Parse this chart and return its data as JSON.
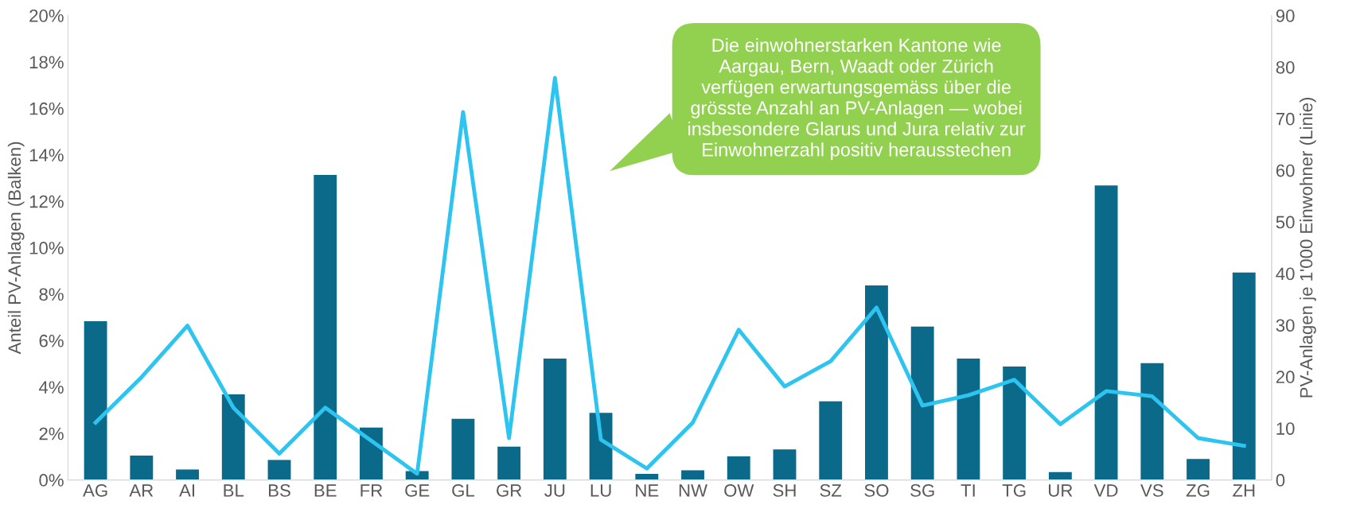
{
  "chart_data": {
    "type": "bar",
    "categories": [
      "AG",
      "AR",
      "AI",
      "BL",
      "BS",
      "BE",
      "FR",
      "GE",
      "GL",
      "GR",
      "JU",
      "LU",
      "NE",
      "NW",
      "OW",
      "SH",
      "SZ",
      "SO",
      "SG",
      "TI",
      "TG",
      "UR",
      "VD",
      "VS",
      "ZG",
      "ZH"
    ],
    "series": [
      {
        "color": "#0b6a8a",
        "values": [
          6.83,
          1.05,
          0.45,
          3.68,
          0.86,
          13.13,
          2.25,
          0.38,
          2.63,
          1.43,
          5.22,
          2.89,
          0.26,
          0.41,
          1.01,
          1.31,
          3.38,
          8.37,
          6.6,
          5.22,
          4.88,
          0.34,
          12.68,
          5.03,
          0.9,
          8.93
        ]
      },
      {
        "type": "line",
        "axis": "y2",
        "color": "#2ec4f0",
        "values": [
          11.1,
          19.9,
          29.9,
          14.0,
          5.1,
          14.0,
          7.6,
          1.2,
          71.3,
          8.1,
          77.9,
          7.8,
          2.2,
          11.1,
          29.1,
          18.1,
          23.0,
          33.4,
          14.4,
          16.4,
          19.4,
          10.8,
          17.2,
          16.2,
          8.1,
          6.6
        ]
      }
    ],
    "ylabel": "Anteil PV-Anlagen (Balken)",
    "y2label": "PV-Anlagen je 1'000 Einwohner (Linie)",
    "ylim": [
      0,
      20
    ],
    "yticks": [
      {
        "value": 0,
        "label": "0%"
      },
      {
        "value": 2,
        "label": "2%"
      },
      {
        "value": 4,
        "label": "4%"
      },
      {
        "value": 6,
        "label": "6%"
      },
      {
        "value": 8,
        "label": "8%"
      },
      {
        "value": 10,
        "label": "10%"
      },
      {
        "value": 12,
        "label": "12%"
      },
      {
        "value": 14,
        "label": "14%"
      },
      {
        "value": 16,
        "label": "16%"
      },
      {
        "value": 18,
        "label": "18%"
      },
      {
        "value": 20,
        "label": "20%"
      }
    ],
    "y2lim": [
      0,
      90
    ],
    "y2ticks": [
      0,
      10,
      20,
      30,
      40,
      50,
      60,
      70,
      80,
      90
    ],
    "annotations": [
      "Die einwohnerstarken Kantone wie\nAargau, Bern, Waadt oder Zürich\nverfügen erwartungsgemäss über die\ngrösste Anzahl an PV-Anlagen — wobei\ninsbesondere Glarus und Jura relativ zur\nEinwohnerzahl positiv herausstechen"
    ],
    "grid": false,
    "legend": false
  }
}
